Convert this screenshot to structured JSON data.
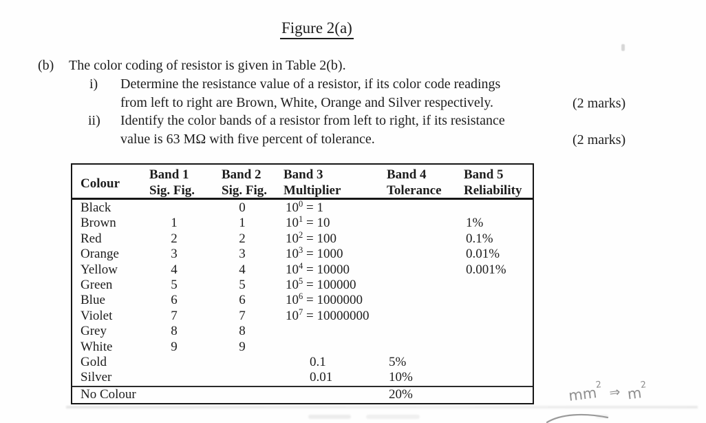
{
  "figure_title": "Figure 2(a)",
  "question": {
    "label": "(b)",
    "intro": "The color coding of resistor is given in Table 2(b).",
    "items": [
      {
        "label": "i)",
        "line1": "Determine the resistance value of a resistor, if its color code readings",
        "line2": "from left to right are Brown, White, Orange and Silver respectively.",
        "marks": "(2 marks)"
      },
      {
        "label": "ii)",
        "line1": "Identify the color bands of a resistor from left to right, if its resistance",
        "line2": "value is 63 MΩ with five percent of tolerance.",
        "marks": "(2 marks)"
      }
    ]
  },
  "table": {
    "header": {
      "colour": "Colour",
      "band1": {
        "line1": "Band 1",
        "line2": "Sig. Fig."
      },
      "band2": {
        "line1": "Band 2",
        "line2": "Sig. Fig."
      },
      "band3": {
        "line1": "Band 3",
        "line2": "Multiplier"
      },
      "band4": {
        "line1": "Band 4",
        "line2": "Tolerance"
      },
      "band5": {
        "line1": "Band 5",
        "line2": "Reliability"
      }
    },
    "rows": [
      {
        "colour": "Black",
        "band1": "",
        "band2": "0",
        "mult": {
          "base": "10",
          "exp": "0",
          "result": "= 1"
        },
        "tolerance": "",
        "reliability": ""
      },
      {
        "colour": "Brown",
        "band1": "1",
        "band2": "1",
        "mult": {
          "base": "10",
          "exp": "1",
          "result": "= 10"
        },
        "tolerance": "",
        "reliability": "1%"
      },
      {
        "colour": "Red",
        "band1": "2",
        "band2": "2",
        "mult": {
          "base": "10",
          "exp": "2",
          "result": "= 100"
        },
        "tolerance": "",
        "reliability": "0.1%"
      },
      {
        "colour": "Orange",
        "band1": "3",
        "band2": "3",
        "mult": {
          "base": "10",
          "exp": "3",
          "result": "= 1000"
        },
        "tolerance": "",
        "reliability": "0.01%"
      },
      {
        "colour": "Yellow",
        "band1": "4",
        "band2": "4",
        "mult": {
          "base": "10",
          "exp": "4",
          "result": "= 10000"
        },
        "tolerance": "",
        "reliability": "0.001%"
      },
      {
        "colour": "Green",
        "band1": "5",
        "band2": "5",
        "mult": {
          "base": "10",
          "exp": "5",
          "result": "= 100000"
        },
        "tolerance": "",
        "reliability": ""
      },
      {
        "colour": "Blue",
        "band1": "6",
        "band2": "6",
        "mult": {
          "base": "10",
          "exp": "6",
          "result": "= 1000000"
        },
        "tolerance": "",
        "reliability": ""
      },
      {
        "colour": "Violet",
        "band1": "7",
        "band2": "7",
        "mult": {
          "base": "10",
          "exp": "7",
          "result": "= 10000000"
        },
        "tolerance": "",
        "reliability": ""
      },
      {
        "colour": "Grey",
        "band1": "8",
        "band2": "8",
        "mult": null,
        "tolerance": "",
        "reliability": ""
      },
      {
        "colour": "White",
        "band1": "9",
        "band2": "9",
        "mult": null,
        "tolerance": "",
        "reliability": ""
      },
      {
        "colour": "Gold",
        "band1": "",
        "band2": "",
        "mult": {
          "plain": "0.1"
        },
        "tolerance": "5%",
        "reliability": ""
      },
      {
        "colour": "Silver",
        "band1": "",
        "band2": "",
        "mult": {
          "plain": "0.01"
        },
        "tolerance": "10%",
        "reliability": ""
      },
      {
        "colour": "No Colour",
        "band1": "",
        "band2": "",
        "mult": null,
        "tolerance": "20%",
        "reliability": "",
        "separator_above": true
      }
    ]
  },
  "handwriting": {
    "expr_left": "mm",
    "sup_left": "2",
    "arrow": "⇒",
    "expr_right": "m",
    "sup_right": "2"
  },
  "colors": {
    "paper": "#fefefe",
    "ink": "#1d1d1d",
    "pencil": "#8f8f8f"
  }
}
